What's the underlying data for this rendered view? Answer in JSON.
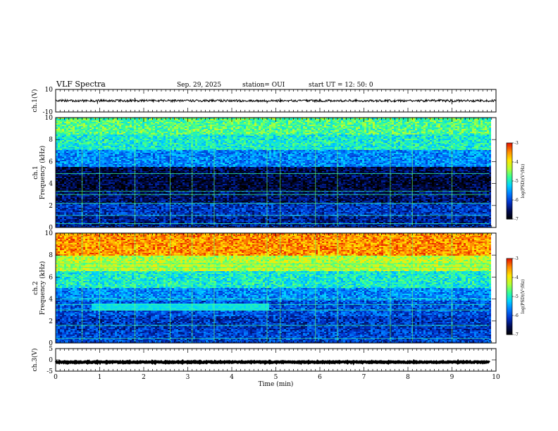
{
  "header": {
    "title": "VLF Spectra",
    "date": "Sep. 29, 2025",
    "station": "station= OUI",
    "start": "start  UT  =   12: 50: 0"
  },
  "colors": {
    "spectrogram_scale": [
      "#000000",
      "#000a50",
      "#0030c8",
      "#0078ff",
      "#00d2ff",
      "#32ff96",
      "#b4ff32",
      "#ffe600",
      "#ff8c00",
      "#e61400"
    ]
  },
  "chart_data": [
    {
      "id": "ch1-waveform",
      "type": "line",
      "ylabel": "ch.1(V)",
      "ylim": [
        -10,
        10
      ],
      "y_ticks": [
        "10",
        "-10"
      ],
      "x_range_min": [
        0,
        10
      ],
      "baseline_v": 0,
      "noise_amplitude_v": 1,
      "spikes": [
        {
          "t_min": 0.95,
          "value_v": -2.8
        },
        {
          "t_min": 1.8,
          "value_v": 2.5
        },
        {
          "t_min": 4.8,
          "value_v": -2.3
        },
        {
          "t_min": 5.1,
          "value_v": 2.2
        },
        {
          "t_min": 9.0,
          "value_v": -3.2
        }
      ]
    },
    {
      "id": "ch1-spectrogram",
      "type": "heatmap",
      "ylabel": "ch.1\nFrequency (kHz)",
      "ylim": [
        0,
        10
      ],
      "y_ticks": [
        "0",
        "2",
        "4",
        "6",
        "8",
        "10"
      ],
      "x_range_min": [
        0,
        9.85
      ],
      "colorbar": {
        "label": "log(PSD)(V²/Hz)",
        "range": [
          -7,
          -3
        ],
        "ticks": [
          "-3",
          "-4",
          "-5",
          "-6",
          "-7"
        ]
      },
      "bands": [
        {
          "f_khz": [
            8.5,
            10
          ],
          "level": -4.7
        },
        {
          "f_khz": [
            7.0,
            8.5
          ],
          "level": -5.0
        },
        {
          "f_khz": [
            5.5,
            7.0
          ],
          "level": -5.6
        },
        {
          "f_khz": [
            4.5,
            5.5
          ],
          "level": -6.6
        },
        {
          "f_khz": [
            3.3,
            4.5
          ],
          "level": -6.7
        },
        {
          "f_khz": [
            2.2,
            3.3
          ],
          "level": -6.5
        },
        {
          "f_khz": [
            1.0,
            2.2
          ],
          "level": -6.1
        },
        {
          "f_khz": [
            0,
            1.0
          ],
          "level": -6.3
        }
      ],
      "tones_khz": [
        7.2,
        4.9,
        3.3,
        3.0,
        2.2,
        1.1,
        0.35
      ],
      "impulses_min": [
        0.6,
        1.0,
        1.8,
        2.6,
        3.1,
        3.6,
        4.8,
        5.1,
        5.9,
        6.4,
        7.6,
        8.1,
        9.0
      ]
    },
    {
      "id": "ch2-spectrogram",
      "type": "heatmap",
      "ylabel": "ch.2\nFrequency (kHz)",
      "ylim": [
        0,
        10
      ],
      "y_ticks": [
        "0",
        "2",
        "4",
        "6",
        "8",
        "10"
      ],
      "x_range_min": [
        0,
        9.85
      ],
      "colorbar": {
        "label": "log(PSD)(V²/Hz)",
        "range": [
          -7,
          -3
        ],
        "ticks": [
          "-3",
          "-4",
          "-5",
          "-6",
          "-7"
        ]
      },
      "bands": [
        {
          "f_khz": [
            8.0,
            10
          ],
          "level": -3.5
        },
        {
          "f_khz": [
            6.5,
            8.0
          ],
          "level": -4.3
        },
        {
          "f_khz": [
            5.0,
            6.5
          ],
          "level": -5.0
        },
        {
          "f_khz": [
            3.8,
            5.0
          ],
          "level": -5.6
        },
        {
          "f_khz": [
            2.5,
            3.8
          ],
          "level": -5.9
        },
        {
          "f_khz": [
            1.2,
            2.5
          ],
          "level": -6.1
        },
        {
          "f_khz": [
            0,
            1.2
          ],
          "level": -6.0
        }
      ],
      "tones_khz": [
        7.2,
        6.9,
        4.0,
        3.5,
        3.0,
        1.6,
        0.4
      ],
      "whistler_band": {
        "t_min": [
          0.8,
          4.8
        ],
        "f_khz": [
          3.0,
          3.6
        ],
        "level": -5.1
      },
      "impulses_min": [
        0.6,
        1.0,
        1.8,
        2.6,
        3.1,
        3.6,
        4.8,
        5.1,
        5.9,
        6.4,
        7.6,
        8.1,
        9.0
      ]
    },
    {
      "id": "ch3-waveform",
      "type": "line",
      "ylabel": "ch.3(V)",
      "ylim": [
        -5,
        5
      ],
      "y_ticks": [
        "5",
        "0",
        "-5"
      ],
      "x_range_min": [
        0,
        9.85
      ],
      "baseline_v": -1.0,
      "noise_amplitude_v": 0.2
    }
  ],
  "x_axis": {
    "label": "Time (min)",
    "range": [
      0,
      10
    ],
    "ticks": [
      "0",
      "1",
      "2",
      "3",
      "4",
      "5",
      "6",
      "7",
      "8",
      "9",
      "10"
    ]
  }
}
